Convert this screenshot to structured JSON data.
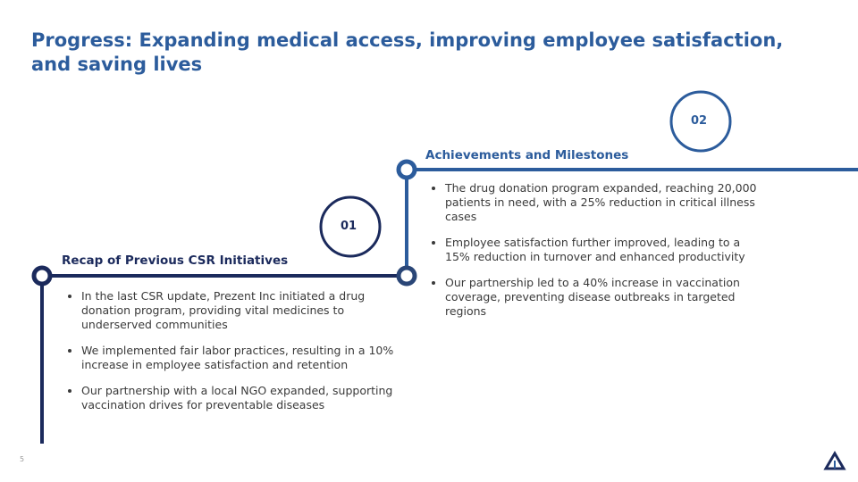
{
  "header": {
    "title": "Progress: Expanding medical access, improving employee satisfaction, and saving lives"
  },
  "sections": [
    {
      "number": "01",
      "heading": "Recap of Previous CSR Initiatives",
      "bullets": [
        "In the last CSR update, Prezent Inc initiated a drug donation program, providing vital medicines to underserved communities",
        "We implemented fair labor practices, resulting in a 10% increase in employee satisfaction and retention",
        "Our partnership with a local NGO expanded, supporting vaccination drives for preventable diseases"
      ]
    },
    {
      "number": "02",
      "heading": "Achievements and Milestones",
      "bullets": [
        "The drug donation program expanded, reaching 20,000 patients in need, with a 25% reduction in critical illness cases",
        "Employee satisfaction further improved, leading to a 15% reduction in turnover and enhanced productivity",
        "Our partnership led to a 40% increase in vaccination coverage, preventing disease outbreaks in targeted regions"
      ]
    }
  ],
  "footer": {
    "page_number": "5"
  }
}
